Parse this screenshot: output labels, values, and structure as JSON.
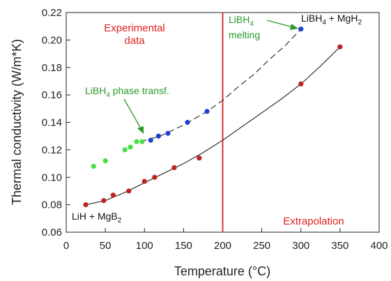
{
  "chart_data": {
    "type": "scatter",
    "xlabel": "Temperature (°C)",
    "ylabel": "Thermal conductivity (W/m*K)",
    "xlim": [
      0,
      400
    ],
    "ylim": [
      0.06,
      0.22
    ],
    "xticks": [
      0,
      50,
      100,
      150,
      200,
      250,
      300,
      350,
      400
    ],
    "yticks": [
      0.06,
      0.08,
      0.1,
      0.12,
      0.14,
      0.16,
      0.18,
      0.2,
      0.22
    ],
    "xtick_labels": [
      "0",
      "50",
      "100",
      "150",
      "200",
      "250",
      "300",
      "350",
      "400"
    ],
    "ytick_labels": [
      "0.06",
      "0.08",
      "0.10",
      "0.12",
      "0.14",
      "0.16",
      "0.18",
      "0.20",
      "0.22"
    ],
    "grid": false,
    "series": [
      {
        "color": "#44e044",
        "points": [
          [
            35,
            0.108
          ],
          [
            50,
            0.112
          ],
          [
            75,
            0.12
          ],
          [
            82,
            0.122
          ],
          [
            90,
            0.126
          ],
          [
            97,
            0.126
          ]
        ]
      },
      {
        "color": "#2040d0",
        "points": [
          [
            108,
            0.127
          ],
          [
            118,
            0.13
          ],
          [
            130,
            0.132
          ],
          [
            155,
            0.14
          ],
          [
            180,
            0.148
          ],
          [
            300,
            0.208
          ]
        ]
      },
      {
        "color": "#c02020",
        "points": [
          [
            25,
            0.08
          ],
          [
            48,
            0.083
          ],
          [
            60,
            0.087
          ],
          [
            80,
            0.09
          ],
          [
            100,
            0.097
          ],
          [
            113,
            0.1
          ],
          [
            138,
            0.107
          ],
          [
            170,
            0.114
          ],
          [
            300,
            0.168
          ],
          [
            350,
            0.195
          ]
        ]
      }
    ],
    "fits": [
      {
        "style": "dashed-upper",
        "color": "#333333",
        "points": [
          [
            95,
            0.126
          ],
          [
            120,
            0.13
          ],
          [
            150,
            0.138
          ],
          [
            180,
            0.148
          ],
          [
            200,
            0.156
          ],
          [
            220,
            0.166
          ],
          [
            240,
            0.175
          ],
          [
            260,
            0.186
          ],
          [
            280,
            0.196
          ],
          [
            300,
            0.208
          ]
        ]
      },
      {
        "style": "solid-lower",
        "color": "#333333",
        "points": [
          [
            25,
            0.08
          ],
          [
            50,
            0.083
          ],
          [
            75,
            0.089
          ],
          [
            100,
            0.096
          ],
          [
            125,
            0.103
          ],
          [
            150,
            0.11
          ],
          [
            175,
            0.118
          ],
          [
            200,
            0.127
          ],
          [
            225,
            0.137
          ],
          [
            250,
            0.147
          ],
          [
            275,
            0.157
          ],
          [
            300,
            0.168
          ],
          [
            325,
            0.181
          ],
          [
            350,
            0.195
          ]
        ]
      }
    ],
    "vertical_line": {
      "x": 200,
      "color": "#e03030"
    },
    "annotations": {
      "experimental_line1": "Experimental",
      "experimental_line2": "data",
      "extrapolation": "Extrapolation",
      "phase_transf_prefix": "LiBH",
      "phase_transf_sub": "4",
      "phase_transf_suffix": " phase transf.",
      "melting_prefix": "LiBH",
      "melting_sub": "4",
      "melting_word": "melting",
      "top_prefix": "LiBH",
      "top_sub1": "4",
      "top_mid": " + MgH",
      "top_sub2": "2",
      "bottom_prefix": "LiH + MgB",
      "bottom_sub": "2"
    }
  }
}
